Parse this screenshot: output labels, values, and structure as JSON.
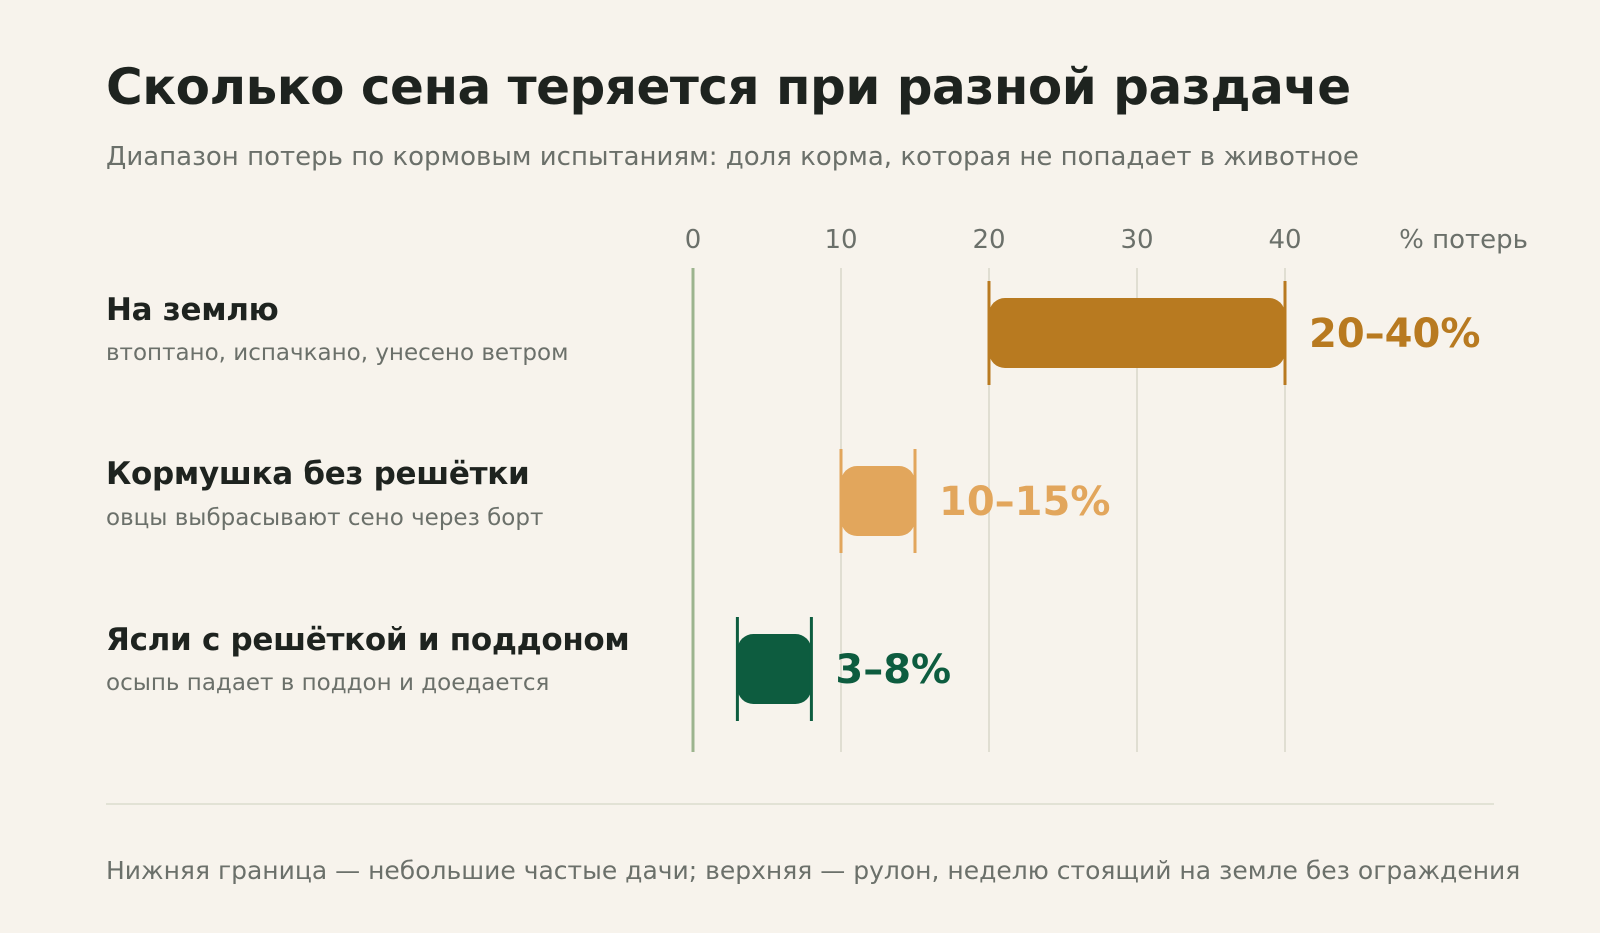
{
  "title": "Сколько сена теряется при разной раздаче",
  "subtitle": "Диапазон потерь по кормовым испытаниям: доля корма, которая не попадает в животное",
  "footnote": "Нижняя граница — небольшие частые дачи; верхняя — рулон, неделю стоящий на земле без ограждения",
  "chart_data": {
    "type": "bar",
    "orientation": "horizontal-range",
    "xlim": [
      0,
      40
    ],
    "xticks": [
      "0",
      "10",
      "20",
      "30",
      "40"
    ],
    "xticks_values": [
      0,
      10,
      20,
      30,
      40
    ],
    "xunit_label": "% потерь",
    "grid": true,
    "rows": [
      {
        "label": "На землю",
        "desc": "втоптано, испачкано, унесено ветром",
        "low": 20,
        "high": 40,
        "value_label": "20–40%",
        "color": "#b87a20"
      },
      {
        "label": "Кормушка без решётки",
        "desc": "овцы выбрасывают сено через борт",
        "low": 10,
        "high": 15,
        "value_label": "10–15%",
        "color": "#e2a65c"
      },
      {
        "label": "Ясли с решёткой и поддоном",
        "desc": "осыпь падает в поддон и доедается",
        "low": 3,
        "high": 8,
        "value_label": "3–8%",
        "color": "#0d5c3f"
      }
    ],
    "colors": {
      "zero_line": "#9cb48e",
      "grid": "#e0ded2",
      "tick_text": "#6b706a"
    }
  }
}
